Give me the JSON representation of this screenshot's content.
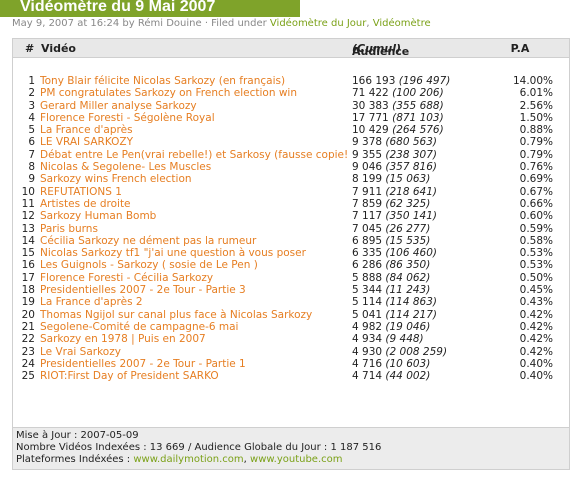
{
  "post": {
    "title": "Vidéomètre du 9 Mai 2007",
    "byline_prefix": "May 9, 2007 at 16:24 by Rémi Douine · Filed under",
    "category1": "Vidéomètre du Jour",
    "separator": ",",
    "category2": "Vidéomètre"
  },
  "table": {
    "headers": {
      "num": "#",
      "video": "Vidéo",
      "audience": "Audience",
      "cumul": "(Cumul)",
      "pa": "P.A"
    },
    "rows": [
      {
        "n": "1",
        "video": "Tony Blair félicite Nicolas Sarkozy (en français)",
        "aud": "166 193",
        "cum": "(196 497)",
        "pa": "14.00%"
      },
      {
        "n": "2",
        "video": "PM congratulates Sarkozy on French election win",
        "aud": "71 422",
        "cum": "(100 206)",
        "pa": "6.01%"
      },
      {
        "n": "3",
        "video": "Gerard Miller analyse Sarkozy",
        "aud": "30 383",
        "cum": "(355 688)",
        "pa": "2.56%"
      },
      {
        "n": "4",
        "video": "Florence Foresti - Ségolène Royal",
        "aud": "17 771",
        "cum": "(871 103)",
        "pa": "1.50%"
      },
      {
        "n": "5",
        "video": "La France d'après",
        "aud": "10 429",
        "cum": "(264 576)",
        "pa": "0.88%"
      },
      {
        "n": "6",
        "video": "LE VRAI SARKOZY",
        "aud": "9 378",
        "cum": "(680 563)",
        "pa": "0.79%"
      },
      {
        "n": "7",
        "video": "Débat entre Le Pen(vrai rebelle!) et Sarkosy (fausse copie!",
        "aud": "9 355",
        "cum": "(238 307)",
        "pa": "0.79%"
      },
      {
        "n": "8",
        "video": "Nicolas & Segolene- Les Muscles",
        "aud": "9 046",
        "cum": "(357 816)",
        "pa": "0.76%"
      },
      {
        "n": "9",
        "video": "Sarkozy wins French election",
        "aud": "8 199",
        "cum": "(15 063)",
        "pa": "0.69%"
      },
      {
        "n": "10",
        "video": "REFUTATIONS 1",
        "aud": "7 911",
        "cum": "(218 641)",
        "pa": "0.67%"
      },
      {
        "n": "11",
        "video": "Artistes de droite",
        "aud": "7 859",
        "cum": "(62 325)",
        "pa": "0.66%"
      },
      {
        "n": "12",
        "video": "Sarkozy Human Bomb",
        "aud": "7 117",
        "cum": "(350 141)",
        "pa": "0.60%"
      },
      {
        "n": "13",
        "video": "Paris burns",
        "aud": "7 045",
        "cum": "(26 277)",
        "pa": "0.59%"
      },
      {
        "n": "14",
        "video": "Cécilia Sarkozy ne dément pas la rumeur",
        "aud": "6 895",
        "cum": "(15 535)",
        "pa": "0.58%"
      },
      {
        "n": "15",
        "video": "Nicolas Sarkozy tf1 \"j'ai une question à vous poser",
        "aud": "6 335",
        "cum": "(106 460)",
        "pa": "0.53%"
      },
      {
        "n": "16",
        "video": "Les Guignols - Sarkozy ( sosie de Le Pen )",
        "aud": "6 286",
        "cum": "(86 350)",
        "pa": "0.53%"
      },
      {
        "n": "17",
        "video": "Florence Foresti - Cécilia Sarkozy",
        "aud": "5 888",
        "cum": "(84 062)",
        "pa": "0.50%"
      },
      {
        "n": "18",
        "video": "Presidentielles 2007 - 2e Tour - Partie 3",
        "aud": "5 344",
        "cum": "(11 243)",
        "pa": "0.45%"
      },
      {
        "n": "19",
        "video": "La France d'après 2",
        "aud": "5 114",
        "cum": "(114 863)",
        "pa": "0.43%"
      },
      {
        "n": "20",
        "video": "Thomas Ngijol sur canal plus face à Nicolas Sarkozy",
        "aud": "5 041",
        "cum": "(114 217)",
        "pa": "0.42%"
      },
      {
        "n": "21",
        "video": "Segolene-Comité de campagne-6 mai",
        "aud": "4 982",
        "cum": "(19 046)",
        "pa": "0.42%"
      },
      {
        "n": "22",
        "video": "Sarkozy en 1978 | Puis en 2007",
        "aud": "4 934",
        "cum": "(9 448)",
        "pa": "0.42%"
      },
      {
        "n": "23",
        "video": "Le Vrai Sarkozy",
        "aud": "4 930",
        "cum": "(2 008 259)",
        "pa": "0.42%"
      },
      {
        "n": "24",
        "video": "Presidentielles 2007 - 2e Tour - Partie 1",
        "aud": "4 716",
        "cum": "(10 603)",
        "pa": "0.40%"
      },
      {
        "n": "25",
        "video": "RIOT:First Day of President SARKO",
        "aud": "4 714",
        "cum": "(44 002)",
        "pa": "0.40%"
      }
    ]
  },
  "footer": {
    "update_line": "Mise à Jour : 2007-05-09",
    "count_line": "Nombre Vidéos Indexées : 13 669 / Audience Globale du Jour : 1 187 516",
    "platforms_label": "Plateformes Indéxées :",
    "platform1": "www.dailymotion.com",
    "platform_sep": ",",
    "platform2": "www.youtube.com"
  },
  "colors": {
    "accent": "#7fa32a",
    "link": "#e67e22",
    "link_green": "#7ba118"
  }
}
